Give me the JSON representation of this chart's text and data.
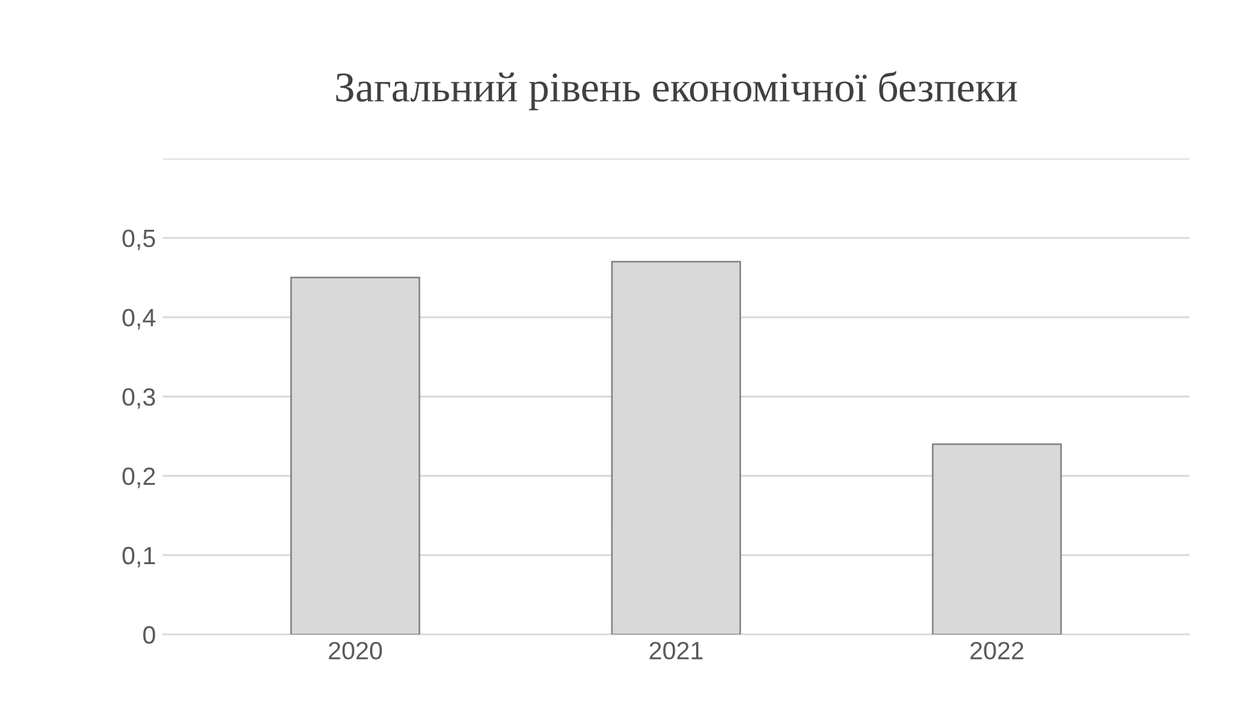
{
  "chart_data": {
    "type": "bar",
    "title": "Загальний рівень економічної безпеки",
    "categories": [
      "2020",
      "2021",
      "2022"
    ],
    "values": [
      0.45,
      0.47,
      0.24
    ],
    "color": "#d9d9d9",
    "ylim": [
      0,
      0.6
    ],
    "yticks": [
      {
        "value": 0,
        "label": "0"
      },
      {
        "value": 0.1,
        "label": "0,1"
      },
      {
        "value": 0.2,
        "label": "0,2"
      },
      {
        "value": 0.3,
        "label": "0,3"
      },
      {
        "value": 0.4,
        "label": "0,4"
      },
      {
        "value": 0.5,
        "label": "0,5"
      },
      {
        "value": 0.6,
        "label": null
      }
    ],
    "grid": "y"
  }
}
